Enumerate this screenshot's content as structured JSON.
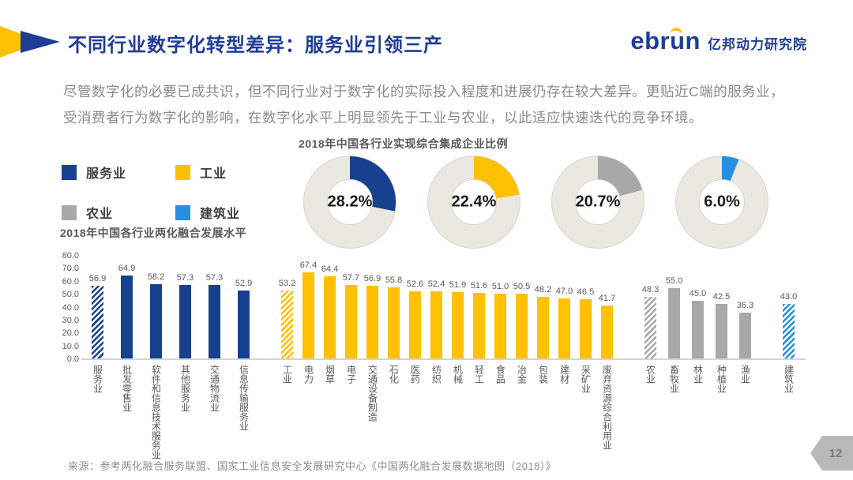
{
  "header": {
    "title": "不同行业数字化转型差异：服务业引领三产",
    "logo_text": "ebrun",
    "logo_suffix": "亿邦动力研究院"
  },
  "intro": {
    "line1": "尽管数字化的必要已成共识，但不同行业对于数字化的实际投入程度和进展仍存在较大差异。更贴近C端的服务业，",
    "line2": "受消费者行为数字化的影响，在数字化水平上明显领先于工业与农业，以此适应快速迭代的竞争环境。"
  },
  "legend": {
    "items": [
      {
        "label": "服务业",
        "color": "#17418F"
      },
      {
        "label": "工业",
        "color": "#FFC000"
      },
      {
        "label": "农业",
        "color": "#A8A8A8"
      },
      {
        "label": "建筑业",
        "color": "#2490DF"
      }
    ]
  },
  "footer": {
    "source": "来源：参考两化融合服务联盟、国家工业信息安全发展研究中心《中国两化融合发展数据地图（2018）》",
    "page_number": "12"
  },
  "chart_data": [
    {
      "type": "pie",
      "variant": "donut",
      "title": "2018年中国各行业实现综合集成企业比例",
      "track_color": "#EAE8E1",
      "donuts": [
        {
          "label": "服务业",
          "value": 28.2,
          "display": "28.2%",
          "color": "#17418F"
        },
        {
          "label": "工业",
          "value": 22.4,
          "display": "22.4%",
          "color": "#FFC000"
        },
        {
          "label": "农业",
          "value": 20.7,
          "display": "20.7%",
          "color": "#A8A8A8"
        },
        {
          "label": "建筑业",
          "value": 6.0,
          "display": "6.0%",
          "color": "#2490DF"
        }
      ]
    },
    {
      "type": "bar",
      "title": "2018年中国各行业两化融合发展水平",
      "ylim": [
        0,
        80
      ],
      "ytick_step": 10,
      "grid": false,
      "value_labels": true,
      "groups": [
        {
          "name": "服务业",
          "color": "#17418F",
          "bars": [
            {
              "label": "服务业",
              "value": 56.9,
              "hatched": true
            },
            {
              "label": "批发零售业",
              "value": 64.9
            },
            {
              "label": "软件和信息技术服务业",
              "value": 58.2
            },
            {
              "label": "其他服务业",
              "value": 57.3
            },
            {
              "label": "交通物流业",
              "value": 57.3
            },
            {
              "label": "信息传输服务业",
              "value": 52.9
            }
          ]
        },
        {
          "name": "工业",
          "color": "#FFC000",
          "bars": [
            {
              "label": "工业",
              "value": 53.2,
              "hatched": true
            },
            {
              "label": "电力",
              "value": 67.4
            },
            {
              "label": "烟草",
              "value": 64.4
            },
            {
              "label": "电子",
              "value": 57.7
            },
            {
              "label": "交通设备制造",
              "value": 56.9
            },
            {
              "label": "石化",
              "value": 55.8
            },
            {
              "label": "医药",
              "value": 52.6
            },
            {
              "label": "纺织",
              "value": 52.4
            },
            {
              "label": "机械",
              "value": 51.9
            },
            {
              "label": "轻工",
              "value": 51.6
            },
            {
              "label": "食品",
              "value": 51.0
            },
            {
              "label": "冶金",
              "value": 50.5
            },
            {
              "label": "包装",
              "value": 48.2
            },
            {
              "label": "建材",
              "value": 47.0
            },
            {
              "label": "采矿业",
              "value": 46.5
            },
            {
              "label": "废弃资源综合利用业",
              "value": 41.7
            }
          ]
        },
        {
          "name": "农业",
          "color": "#A8A8A8",
          "bars": [
            {
              "label": "农业",
              "value": 48.3,
              "hatched": true
            },
            {
              "label": "畜牧业",
              "value": 55.0
            },
            {
              "label": "林业",
              "value": 45.0
            },
            {
              "label": "种植业",
              "value": 42.5
            },
            {
              "label": "渔业",
              "value": 36.3
            }
          ]
        },
        {
          "name": "建筑业",
          "color": "#2490DF",
          "bars": [
            {
              "label": "建筑业",
              "value": 43.0,
              "hatched": true
            }
          ]
        }
      ]
    }
  ]
}
